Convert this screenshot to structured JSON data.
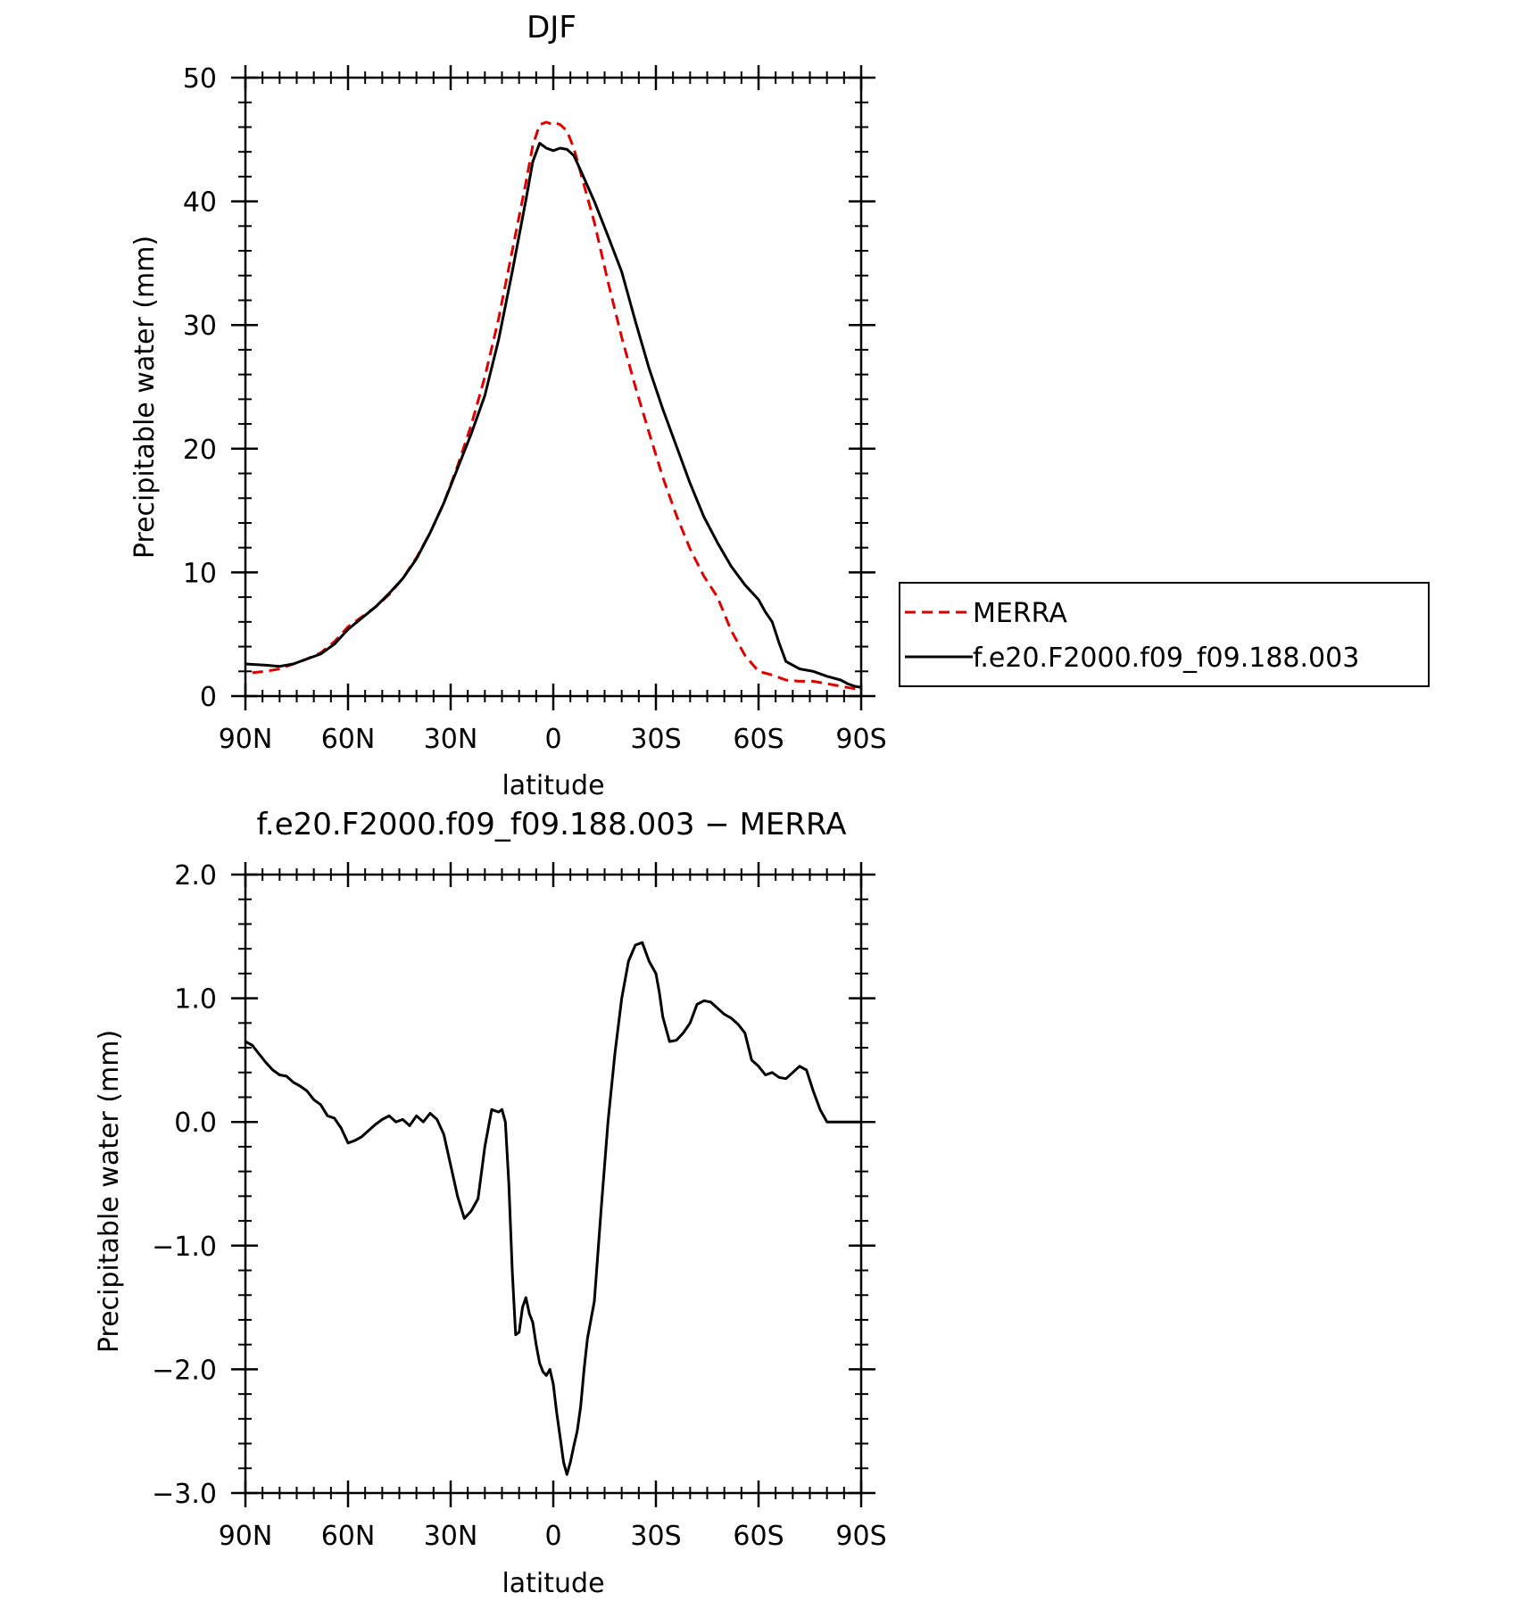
{
  "chart_data": [
    {
      "type": "line",
      "title": "DJF",
      "xlabel": "latitude",
      "ylabel": "Precipitable water (mm)",
      "xlim": [
        90,
        -90
      ],
      "ylim": [
        0,
        50
      ],
      "x_ticks": [
        {
          "value": 90,
          "label": "90N"
        },
        {
          "value": 60,
          "label": "60N"
        },
        {
          "value": 30,
          "label": "30N"
        },
        {
          "value": 0,
          "label": "0"
        },
        {
          "value": -30,
          "label": "30S"
        },
        {
          "value": -60,
          "label": "60S"
        },
        {
          "value": -90,
          "label": "90S"
        }
      ],
      "y_ticks": [
        {
          "value": 0,
          "label": "0"
        },
        {
          "value": 10,
          "label": "10"
        },
        {
          "value": 20,
          "label": "20"
        },
        {
          "value": 30,
          "label": "30"
        },
        {
          "value": 40,
          "label": "40"
        },
        {
          "value": 50,
          "label": "50"
        }
      ],
      "grid": false,
      "legend_position": "right",
      "series": [
        {
          "name": "MERRA",
          "color": "#e00000",
          "dash": "dashed",
          "x": [
            88,
            84,
            80,
            76,
            72,
            68,
            64,
            60,
            56,
            52,
            48,
            44,
            40,
            36,
            32,
            28,
            24,
            20,
            16,
            12,
            8,
            6,
            4,
            2,
            1,
            0,
            -1,
            -2,
            -4,
            -6,
            -8,
            -12,
            -16,
            -20,
            -24,
            -28,
            -32,
            -36,
            -40,
            -44,
            -48,
            -52,
            -56,
            -60,
            -64,
            -66,
            -68,
            -72,
            -76,
            -80,
            -84,
            -86,
            -88,
            -90
          ],
          "y": [
            1.9,
            2.0,
            2.2,
            2.6,
            3.0,
            3.5,
            4.4,
            5.6,
            6.4,
            7.2,
            8.2,
            9.5,
            11.2,
            13.2,
            15.6,
            18.6,
            21.9,
            25.8,
            30.5,
            36.0,
            41.5,
            44.5,
            46.2,
            46.4,
            46.3,
            46.2,
            46.3,
            46.2,
            45.7,
            44.3,
            42.3,
            38.3,
            33.5,
            29.0,
            25.0,
            21.3,
            17.7,
            14.6,
            11.9,
            9.7,
            8.0,
            5.3,
            3.3,
            2.0,
            1.7,
            1.5,
            1.3,
            1.2,
            1.2,
            1.0,
            0.8,
            0.7,
            0.6,
            0.6
          ]
        },
        {
          "name": "f.e20.F2000.f09_f09.188.003",
          "color": "#000000",
          "dash": "solid",
          "x": [
            90,
            84,
            80,
            76,
            72,
            68,
            64,
            60,
            56,
            52,
            48,
            44,
            40,
            36,
            32,
            28,
            24,
            20,
            16,
            12,
            8,
            6,
            4,
            2,
            0,
            -2,
            -4,
            -6,
            -8,
            -12,
            -16,
            -20,
            -24,
            -28,
            -32,
            -36,
            -40,
            -44,
            -48,
            -52,
            -56,
            -60,
            -62,
            -64,
            -66,
            -68,
            -72,
            -76,
            -80,
            -84,
            -86,
            -88,
            -90
          ],
          "y": [
            2.6,
            2.5,
            2.4,
            2.6,
            3.0,
            3.4,
            4.2,
            5.4,
            6.3,
            7.2,
            8.3,
            9.5,
            11.1,
            13.2,
            15.6,
            18.4,
            21.2,
            24.3,
            28.8,
            34.3,
            40.1,
            43.2,
            44.7,
            44.3,
            44.1,
            44.3,
            44.2,
            43.7,
            42.5,
            40.0,
            37.2,
            34.3,
            30.3,
            26.5,
            23.2,
            20.2,
            17.2,
            14.5,
            12.4,
            10.5,
            9.0,
            7.8,
            6.8,
            6.0,
            4.3,
            2.8,
            2.2,
            2.0,
            1.6,
            1.3,
            1.0,
            0.8,
            0.7
          ]
        }
      ]
    },
    {
      "type": "line",
      "title": "f.e20.F2000.f09_f09.188.003 − MERRA",
      "xlabel": "latitude",
      "ylabel": "Precipitable water (mm)",
      "xlim": [
        90,
        -90
      ],
      "ylim": [
        -3.0,
        2.0
      ],
      "x_ticks": [
        {
          "value": 90,
          "label": "90N"
        },
        {
          "value": 60,
          "label": "60N"
        },
        {
          "value": 30,
          "label": "30N"
        },
        {
          "value": 0,
          "label": "0"
        },
        {
          "value": -30,
          "label": "30S"
        },
        {
          "value": -60,
          "label": "60S"
        },
        {
          "value": -90,
          "label": "90S"
        }
      ],
      "y_ticks": [
        {
          "value": -3.0,
          "label": "−3.0"
        },
        {
          "value": -2.0,
          "label": "−2.0"
        },
        {
          "value": -1.0,
          "label": "−1.0"
        },
        {
          "value": 0.0,
          "label": "0.0"
        },
        {
          "value": 1.0,
          "label": "1.0"
        },
        {
          "value": 2.0,
          "label": "2.0"
        }
      ],
      "grid": false,
      "series": [
        {
          "color": "#000000",
          "dash": "solid",
          "x": [
            90,
            88,
            86,
            84,
            82,
            80,
            78,
            76,
            74,
            72,
            70,
            68,
            66,
            64,
            62,
            60,
            58,
            56,
            54,
            52,
            50,
            48,
            46,
            44,
            42,
            40,
            38,
            36,
            34,
            32,
            30,
            28,
            26,
            24,
            22,
            20,
            18,
            16,
            15,
            14,
            13,
            12,
            11,
            10,
            9,
            8,
            7,
            6,
            5,
            4,
            3,
            2,
            1,
            0,
            -1,
            -2,
            -3,
            -4,
            -5,
            -6,
            -7,
            -8,
            -9,
            -10,
            -12,
            -14,
            -16,
            -18,
            -20,
            -22,
            -24,
            -26,
            -28,
            -30,
            -31,
            -32,
            -34,
            -36,
            -38,
            -40,
            -42,
            -44,
            -46,
            -48,
            -50,
            -52,
            -54,
            -56,
            -58,
            -60,
            -62,
            -64,
            -66,
            -68,
            -70,
            -72,
            -74,
            -76,
            -78,
            -80,
            -82,
            -84,
            -86,
            -88,
            -90
          ],
          "y": [
            0.65,
            0.62,
            0.55,
            0.48,
            0.42,
            0.38,
            0.37,
            0.32,
            0.29,
            0.25,
            0.18,
            0.14,
            0.05,
            0.03,
            -0.05,
            -0.17,
            -0.15,
            -0.12,
            -0.07,
            -0.02,
            0.02,
            0.05,
            0.0,
            0.02,
            -0.03,
            0.05,
            0.0,
            0.07,
            0.02,
            -0.1,
            -0.35,
            -0.6,
            -0.78,
            -0.72,
            -0.62,
            -0.2,
            0.1,
            0.08,
            0.1,
            0.0,
            -0.5,
            -1.2,
            -1.72,
            -1.7,
            -1.5,
            -1.42,
            -1.55,
            -1.62,
            -1.8,
            -1.95,
            -2.02,
            -2.05,
            -2.0,
            -2.12,
            -2.35,
            -2.55,
            -2.75,
            -2.85,
            -2.75,
            -2.62,
            -2.5,
            -2.3,
            -2.0,
            -1.75,
            -1.45,
            -0.7,
            0.0,
            0.55,
            1.0,
            1.3,
            1.43,
            1.45,
            1.3,
            1.2,
            1.05,
            0.85,
            0.65,
            0.66,
            0.72,
            0.8,
            0.95,
            0.98,
            0.97,
            0.92,
            0.87,
            0.84,
            0.79,
            0.72,
            0.5,
            0.45,
            0.38,
            0.4,
            0.36,
            0.35,
            0.4,
            0.45,
            0.42,
            0.25,
            0.1,
            0.0,
            0.0,
            0.0,
            0.0,
            0.0,
            0.0
          ]
        }
      ]
    }
  ]
}
